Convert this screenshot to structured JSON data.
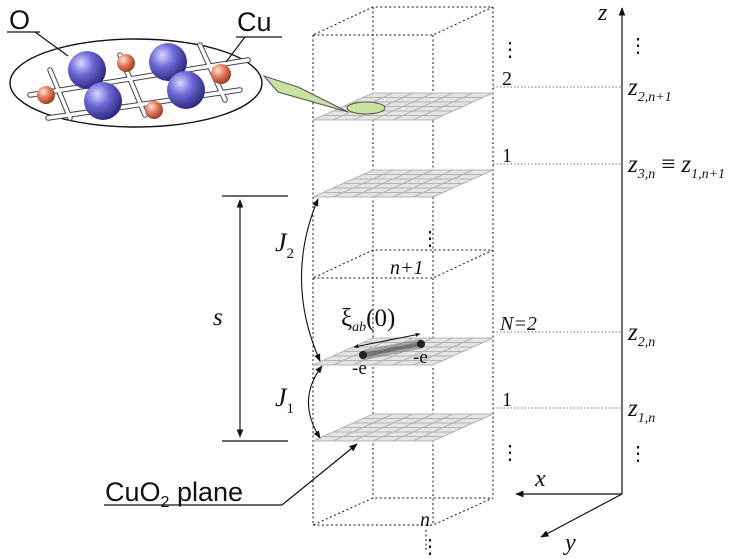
{
  "inset": {
    "label_o": "O",
    "label_cu": "Cu"
  },
  "stack_labels": {
    "dots": "⋮",
    "plane_2": "2",
    "plane_1_top": "1",
    "cell_n1": "n+1",
    "n_eq_2": "N=2",
    "plane_1_bottom": "1",
    "cell_n": "n"
  },
  "couplings": {
    "j2_letter": "J",
    "j2_sub": "2",
    "j1_letter": "J",
    "j1_sub": "1",
    "spacing": "s"
  },
  "pair": {
    "xi": "ξ",
    "xi_sub": "ab",
    "xi_arg": "(0)",
    "electron_left": "-e",
    "electron_right": "-e"
  },
  "plane_label": {
    "prefix": "CuO",
    "sub": "2",
    "suffix": " plane"
  },
  "axes": {
    "z": "z",
    "x": "x",
    "y": "y"
  },
  "z_labels": {
    "z_2_n1_letter": "z",
    "z_2_n1_sub": "2,n+1",
    "z_3n_letter": "z",
    "z_3n_sub": "3,n",
    "equiv": "≡",
    "z_1_n1_letter": "z",
    "z_1_n1_sub": "1,n+1",
    "z_2n_letter": "z",
    "z_2n_sub": "2,n",
    "z_1n_letter": "z",
    "z_1n_sub": "1,n"
  },
  "colors": {
    "oxygen": "#5a56c8",
    "copper": "#e07a5f",
    "plane_fill": "#e4e4e4",
    "plane_grid": "#b4b4b4",
    "highlight": "#c9e2a0"
  }
}
